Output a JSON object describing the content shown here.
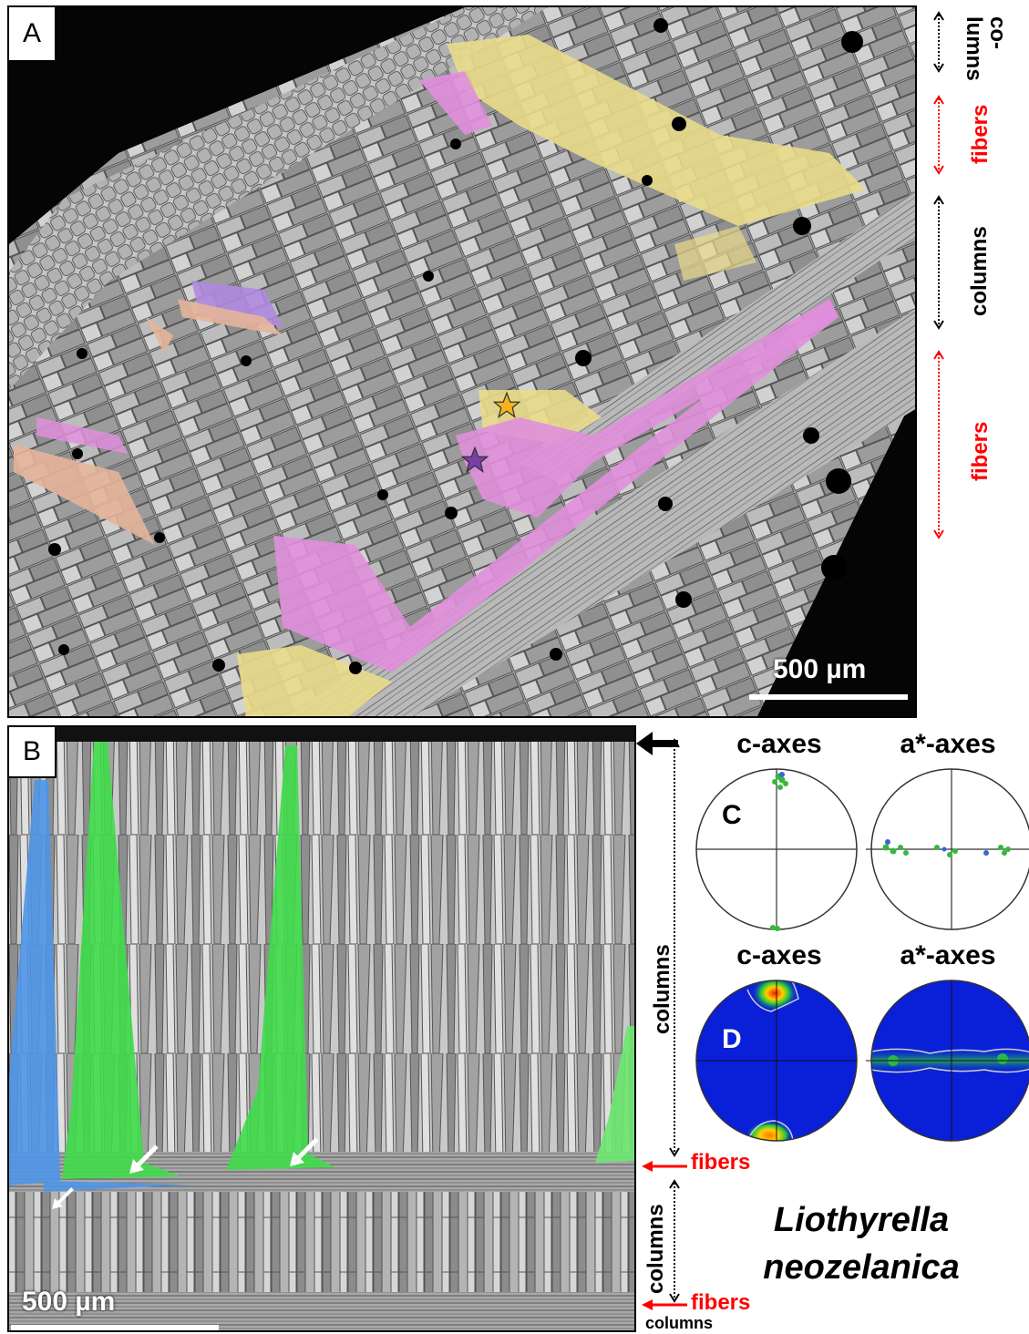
{
  "panels": {
    "a": {
      "label": "A",
      "scale_bar": "500 µm",
      "side_labels": [
        {
          "text": "co-\nlumns",
          "color": "#000000"
        },
        {
          "text": "fibers",
          "color": "#ff0000"
        },
        {
          "text": "columns",
          "color": "#000000"
        },
        {
          "text": "fibers",
          "color": "#ff0000"
        }
      ]
    },
    "b": {
      "label": "B",
      "scale_bar": "500 µm",
      "side_labels": {
        "columns_long": "columns",
        "fibers_top": "fibers",
        "columns_mid": "columns",
        "fibers_bottom": "fibers",
        "columns_bottom": "columns"
      }
    },
    "c": {
      "label": "C",
      "titles": [
        "c-axes",
        "a*-axes"
      ]
    },
    "d": {
      "label": "D",
      "titles": [
        "c-axes",
        "a*-axes"
      ]
    }
  },
  "species": {
    "line1": "Liothyrella",
    "line2": "neozelanica"
  },
  "colors": {
    "fibers_label": "#ff0000",
    "columns_label": "#000000",
    "highlight_pink": "#e08fdc",
    "highlight_yellow": "#e9dc8a",
    "highlight_purple": "#b08ae0",
    "highlight_peach": "#e6b49a",
    "highlight_green": "#3fdc4a",
    "highlight_blue": "#4f95e8",
    "pole_figure_blue": "#0a1fd8"
  },
  "icons": {
    "star_orange": "star-icon",
    "star_purple": "star-icon",
    "white_arrow": "arrow-icon",
    "black_arrow": "arrow-left-icon"
  }
}
